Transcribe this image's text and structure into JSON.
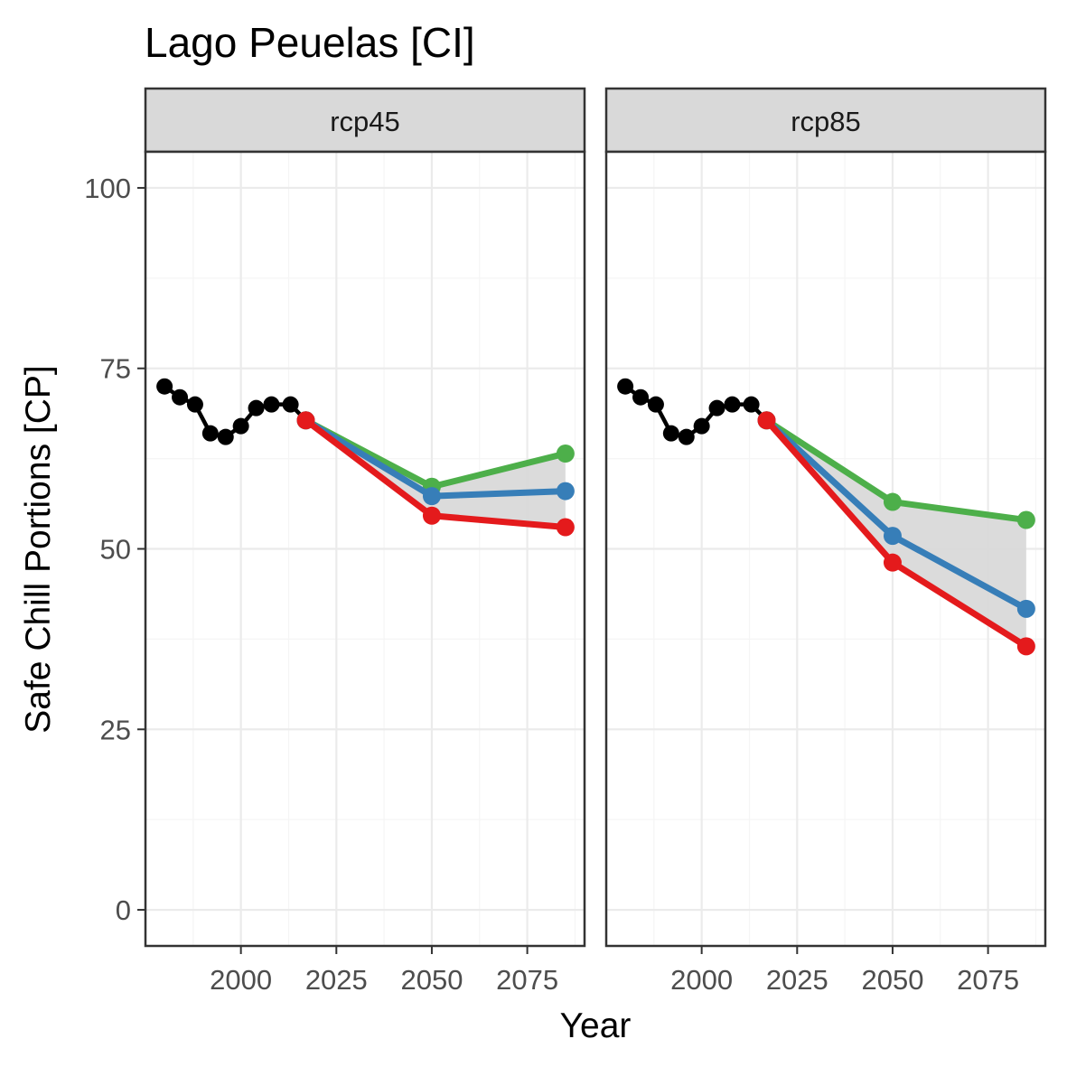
{
  "chart_data": {
    "type": "line",
    "title": "Lago Peuelas [CI]",
    "xlabel": "Year",
    "ylabel": "Safe Chill Portions [CP]",
    "xlim": [
      1975,
      2090
    ],
    "ylim": [
      -5,
      105
    ],
    "x_ticks": [
      2000,
      2025,
      2050,
      2075
    ],
    "y_ticks": [
      0,
      25,
      50,
      75,
      100
    ],
    "grid": true,
    "legend": "none",
    "colors": {
      "historic": "#000000",
      "high": "#4DAF4A",
      "mid": "#377EB8",
      "low": "#E41A1C",
      "ribbon": "#d9d9d9",
      "strip_fill": "#d9d9d9",
      "panel_border": "#333333",
      "grid_major": "#ebebeb",
      "grid_minor": "#f5f5f5"
    },
    "panels": [
      {
        "label": "rcp45",
        "historic": {
          "x": [
            1980,
            1984,
            1988,
            1992,
            1996,
            2000,
            2004,
            2008,
            2013,
            2017
          ],
          "y": [
            72.5,
            71,
            70,
            66,
            65.5,
            67,
            69.5,
            70,
            70,
            67.8
          ]
        },
        "projections": [
          {
            "key": "high",
            "x": [
              2017,
              2050,
              2085
            ],
            "y": [
              67.8,
              58.6,
              63.2
            ]
          },
          {
            "key": "mid",
            "x": [
              2017,
              2050,
              2085
            ],
            "y": [
              67.8,
              57.3,
              58.0
            ]
          },
          {
            "key": "low",
            "x": [
              2017,
              2050,
              2085
            ],
            "y": [
              67.8,
              54.6,
              53.0
            ]
          }
        ]
      },
      {
        "label": "rcp85",
        "historic": {
          "x": [
            1980,
            1984,
            1988,
            1992,
            1996,
            2000,
            2004,
            2008,
            2013,
            2017
          ],
          "y": [
            72.5,
            71,
            70,
            66,
            65.5,
            67,
            69.5,
            70,
            70,
            67.8
          ]
        },
        "projections": [
          {
            "key": "high",
            "x": [
              2017,
              2050,
              2085
            ],
            "y": [
              67.8,
              56.5,
              54.0
            ]
          },
          {
            "key": "mid",
            "x": [
              2017,
              2050,
              2085
            ],
            "y": [
              67.8,
              51.8,
              41.7
            ]
          },
          {
            "key": "low",
            "x": [
              2017,
              2050,
              2085
            ],
            "y": [
              67.8,
              48.1,
              36.5
            ]
          }
        ]
      }
    ]
  }
}
